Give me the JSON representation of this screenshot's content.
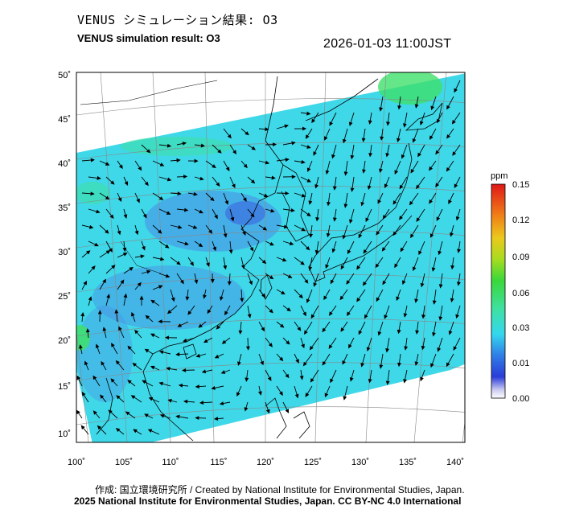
{
  "header": {
    "title_jp": "VENUS シミュレーション結果: O3",
    "title_en": "VENUS simulation result: O3",
    "timestamp": "2026-01-03 11:00JST"
  },
  "map": {
    "lon_ticks": [
      "100˚",
      "105˚",
      "110˚",
      "115˚",
      "120˚",
      "125˚",
      "130˚",
      "135˚",
      "140˚"
    ],
    "lat_ticks": [
      "50˚",
      "45˚",
      "40˚",
      "35˚",
      "30˚",
      "25˚",
      "20˚",
      "15˚",
      "10˚"
    ],
    "field_color": "#3fd8e8",
    "low_color": "#4a8ce6",
    "high_color": "#3ee06a"
  },
  "colorbar": {
    "unit": "ppm",
    "ticks": [
      "0.15",
      "0.12",
      "0.09",
      "0.06",
      "0.03",
      "0.01",
      "0.00"
    ]
  },
  "footer": {
    "credit": "作成: 国立環境研究所 / Created by National Institute for Environmental Studies, Japan.",
    "license": "2025 National Institute for Environmental Studies, Japan. CC BY-NC 4.0 International"
  }
}
